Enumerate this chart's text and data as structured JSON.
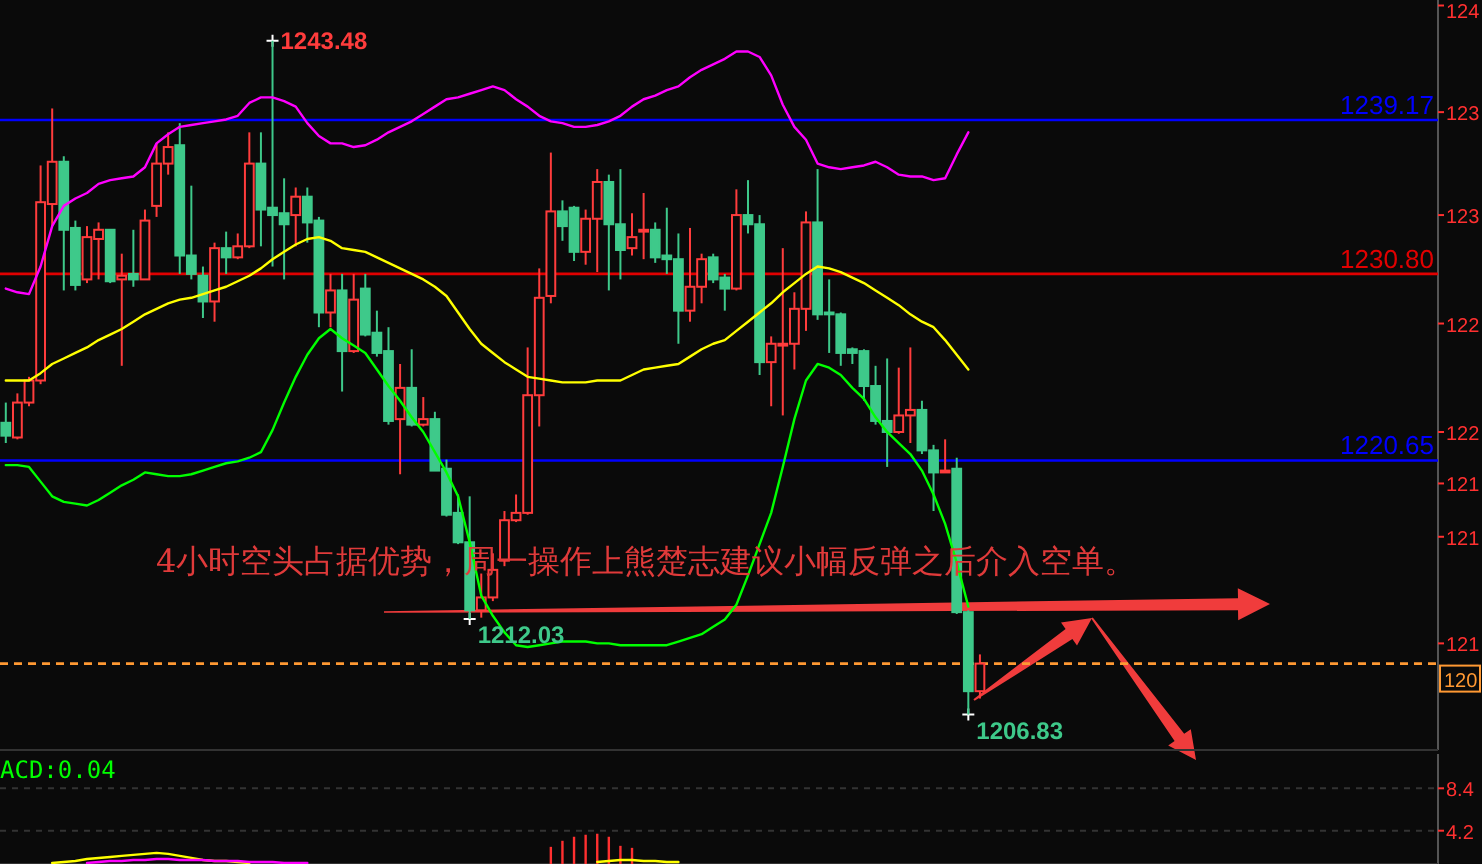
{
  "chart_data": [
    {
      "type": "candlestick",
      "categories": [
        null,
        null,
        null,
        null,
        null,
        null,
        null,
        null,
        null,
        null,
        null,
        null,
        null,
        null,
        null,
        null,
        null,
        null,
        null,
        null,
        null,
        null,
        null,
        null,
        null,
        null,
        null,
        null,
        null,
        null,
        null,
        null,
        null,
        null,
        null,
        null,
        null,
        null,
        null,
        null,
        null,
        null,
        null,
        null,
        null,
        null,
        null,
        null,
        null,
        null,
        null,
        null,
        null,
        null,
        null,
        null,
        null,
        null,
        null,
        null,
        null,
        null,
        null,
        null,
        null,
        null,
        null,
        null,
        null,
        null,
        null,
        null,
        null,
        null,
        null,
        null,
        null,
        null,
        null,
        null,
        null,
        null,
        null,
        null,
        null,
        null,
        null,
        null,
        null,
        null,
        null,
        null,
        null,
        null,
        null,
        null,
        null,
        null,
        null,
        null,
        null,
        null,
        null,
        null,
        null,
        null,
        null,
        null,
        null,
        null,
        null,
        null,
        null,
        null,
        null,
        null,
        null,
        null,
        null,
        null,
        null,
        null,
        null,
        null
      ],
      "ohlc": [
        [
          1222.7,
          1223.8,
          1221.6,
          1222.0
        ],
        [
          1221.9,
          1224.3,
          1221.8,
          1223.8
        ],
        [
          1223.8,
          1225.2,
          1223.6,
          1225.0
        ],
        [
          1225.0,
          1236.7,
          1224.8,
          1234.7
        ],
        [
          1234.6,
          1239.8,
          1233.4,
          1236.9
        ],
        [
          1236.9,
          1237.2,
          1229.9,
          1233.2
        ],
        [
          1233.3,
          1233.7,
          1229.9,
          1230.2
        ],
        [
          1230.5,
          1233.4,
          1230.3,
          1232.8
        ],
        [
          1232.7,
          1233.6,
          1230.5,
          1233.2
        ],
        [
          1233.2,
          1233.2,
          1230.3,
          1230.4
        ],
        [
          1230.5,
          1231.9,
          1225.8,
          1230.7
        ],
        [
          1230.8,
          1233.2,
          1230.1,
          1230.5
        ],
        [
          1230.5,
          1234.3,
          1230.5,
          1233.7
        ],
        [
          1234.5,
          1237.9,
          1233.9,
          1236.8
        ],
        [
          1236.8,
          1238.5,
          1236.2,
          1237.7
        ],
        [
          1237.8,
          1239.0,
          1230.8,
          1231.8
        ],
        [
          1231.8,
          1235.6,
          1230.5,
          1230.8
        ],
        [
          1230.7,
          1231.2,
          1228.4,
          1229.3
        ],
        [
          1229.3,
          1232.5,
          1228.2,
          1232.2
        ],
        [
          1232.2,
          1233.1,
          1230.8,
          1231.7
        ],
        [
          1231.7,
          1233.0,
          1231.6,
          1232.3
        ],
        [
          1232.3,
          1238.5,
          1232.2,
          1236.8
        ],
        [
          1236.8,
          1238.5,
          1232.3,
          1234.3
        ],
        [
          1234.4,
          1243.48,
          1231.2,
          1234.0
        ],
        [
          1234.1,
          1236.0,
          1230.5,
          1233.5
        ],
        [
          1234.0,
          1235.5,
          1232.3,
          1235.0
        ],
        [
          1235.0,
          1235.5,
          1232.5,
          1233.6
        ],
        [
          1233.7,
          1233.9,
          1227.9,
          1228.7
        ],
        [
          1228.7,
          1230.8,
          1227.9,
          1229.9
        ],
        [
          1229.9,
          1230.8,
          1224.4,
          1226.6
        ],
        [
          1226.6,
          1230.8,
          1226.5,
          1229.4
        ],
        [
          1230.0,
          1230.8,
          1227.4,
          1227.5
        ],
        [
          1227.6,
          1228.8,
          1226.3,
          1226.5
        ],
        [
          1226.6,
          1227.9,
          1222.6,
          1222.8
        ],
        [
          1222.9,
          1225.9,
          1219.9,
          1224.6
        ],
        [
          1224.6,
          1226.7,
          1222.5,
          1222.6
        ],
        [
          1222.6,
          1224.1,
          1222.5,
          1222.9
        ],
        [
          1222.9,
          1223.3,
          1220.1,
          1220.1
        ],
        [
          1220.2,
          1220.7,
          1217.6,
          1217.7
        ],
        [
          1217.8,
          1218.8,
          1216.1,
          1216.2
        ],
        [
          1216.2,
          1218.7,
          1212.03,
          1212.5
        ],
        [
          1212.5,
          1214.5,
          1212.1,
          1213.2
        ],
        [
          1213.2,
          1215.6,
          1213.0,
          1214.7
        ],
        [
          1215.2,
          1217.9,
          1214.9,
          1217.4
        ],
        [
          1217.4,
          1218.8,
          1217.3,
          1217.8
        ],
        [
          1217.8,
          1226.8,
          1217.7,
          1224.2
        ],
        [
          1224.2,
          1231.1,
          1222.5,
          1229.5
        ],
        [
          1229.6,
          1237.4,
          1229.2,
          1234.2
        ],
        [
          1234.2,
          1234.8,
          1232.6,
          1233.4
        ],
        [
          1234.4,
          1234.5,
          1231.5,
          1232.0
        ],
        [
          1232.0,
          1234.3,
          1231.3,
          1233.8
        ],
        [
          1233.8,
          1236.5,
          1230.9,
          1235.8
        ],
        [
          1235.8,
          1236.2,
          1229.9,
          1233.5
        ],
        [
          1233.5,
          1236.5,
          1230.5,
          1232.1
        ],
        [
          1232.2,
          1234.1,
          1231.8,
          1232.8
        ],
        [
          1233.1,
          1235.2,
          1231.6,
          1233.2
        ],
        [
          1233.2,
          1233.6,
          1231.4,
          1231.7
        ],
        [
          1231.8,
          1234.4,
          1230.8,
          1231.6
        ],
        [
          1231.6,
          1233.0,
          1227.0,
          1228.8
        ],
        [
          1228.8,
          1233.3,
          1228.2,
          1230.1
        ],
        [
          1230.1,
          1231.9,
          1229.2,
          1231.6
        ],
        [
          1231.7,
          1231.9,
          1230.3,
          1230.5
        ],
        [
          1230.6,
          1230.8,
          1228.8,
          1230.0
        ],
        [
          1230.0,
          1235.4,
          1229.9,
          1234.0
        ],
        [
          1234.0,
          1235.9,
          1233.0,
          1233.5
        ],
        [
          1233.5,
          1234.0,
          1225.3,
          1226.0
        ],
        [
          1226.0,
          1227.4,
          1223.6,
          1227.0
        ],
        [
          1226.9,
          1232.2,
          1223.1,
          1227.0
        ],
        [
          1227.0,
          1229.8,
          1225.6,
          1228.9
        ],
        [
          1228.9,
          1234.2,
          1227.7,
          1233.6
        ],
        [
          1233.6,
          1236.5,
          1228.3,
          1228.6
        ],
        [
          1228.7,
          1230.5,
          1226.5,
          1228.6
        ],
        [
          1228.6,
          1228.7,
          1225.8,
          1226.5
        ],
        [
          1226.7,
          1226.8,
          1225.9,
          1226.5
        ],
        [
          1226.6,
          1226.7,
          1223.9,
          1224.7
        ],
        [
          1224.7,
          1225.8,
          1222.6,
          1222.8
        ],
        [
          1222.8,
          1226.2,
          1220.3,
          1222.2
        ],
        [
          1222.2,
          1225.7,
          1222.1,
          1223.1
        ],
        [
          1223.1,
          1226.8,
          1221.6,
          1223.4
        ],
        [
          1223.4,
          1223.9,
          1221.0,
          1221.2
        ],
        [
          1221.2,
          1221.5,
          1217.9,
          1220.0
        ],
        [
          1220.0,
          1221.8,
          1220.0,
          1220.1
        ],
        [
          1220.2,
          1220.8,
          1212.3,
          1212.4
        ],
        [
          1212.4,
          1212.5,
          1206.83,
          1208.1
        ],
        [
          1208.1,
          1210.1,
          1207.7,
          1209.6
        ],
        null,
        null,
        null,
        null,
        null,
        null,
        null,
        null,
        null,
        null,
        null,
        null,
        null,
        null,
        null,
        null,
        null,
        null,
        null,
        null,
        null,
        null,
        null,
        null,
        null,
        null,
        null,
        null,
        null,
        null,
        null,
        null,
        null,
        null,
        null,
        null,
        null,
        null,
        null
      ],
      "series": [
        {
          "type": "line",
          "color": "#ff00ff",
          "values": [
            1230.0,
            1229.8,
            1229.7,
            1231.2,
            1233.4,
            1234.5,
            1234.9,
            1235.2,
            1235.7,
            1235.9,
            1236.0,
            1236.1,
            1236.6,
            1237.9,
            1238.4,
            1238.8,
            1238.9,
            1239.0,
            1239.1,
            1239.2,
            1239.4,
            1240.1,
            1240.4,
            1240.4,
            1240.2,
            1239.9,
            1239.0,
            1238.3,
            1237.9,
            1237.9,
            1237.7,
            1237.8,
            1238.1,
            1238.5,
            1238.8,
            1239.1,
            1239.5,
            1239.9,
            1240.3,
            1240.4,
            1240.6,
            1240.8,
            1241.0,
            1240.8,
            1240.3,
            1239.9,
            1239.4,
            1239.1,
            1239.0,
            1238.8,
            1238.8,
            1238.9,
            1239.1,
            1239.4,
            1239.9,
            1240.3,
            1240.5,
            1240.8,
            1241.0,
            1241.5,
            1241.9,
            1242.2,
            1242.5,
            1242.9,
            1242.9,
            1242.6,
            1241.6,
            1240.0,
            1238.8,
            1238.1,
            1236.8,
            1236.6,
            1236.5,
            1236.6,
            1236.7,
            1236.9,
            1236.6,
            1236.2,
            1236.1,
            1236.1,
            1235.9,
            1236.0,
            1237.3,
            1238.5,
            null,
            null,
            null,
            null,
            null,
            null,
            null,
            null,
            null,
            null,
            null,
            null,
            null,
            null,
            null,
            null,
            null,
            null,
            null,
            null,
            null,
            null,
            null,
            null,
            null,
            null,
            null,
            null,
            null,
            null,
            null,
            null,
            null,
            null,
            null,
            null,
            null,
            null,
            null,
            null
          ]
        },
        {
          "type": "line",
          "color": "#ffff00",
          "values": [
            1225.0,
            1225.0,
            1225.0,
            1225.4,
            1225.9,
            1226.2,
            1226.5,
            1226.8,
            1227.2,
            1227.5,
            1227.8,
            1228.2,
            1228.6,
            1228.9,
            1229.2,
            1229.4,
            1229.5,
            1229.7,
            1229.9,
            1230.1,
            1230.4,
            1230.7,
            1231.1,
            1231.6,
            1232.0,
            1232.4,
            1232.7,
            1232.8,
            1232.6,
            1232.2,
            1232.1,
            1232.0,
            1231.7,
            1231.4,
            1231.1,
            1230.8,
            1230.5,
            1230.1,
            1229.6,
            1228.7,
            1227.8,
            1227.0,
            1226.5,
            1226.0,
            1225.6,
            1225.2,
            1225.1,
            1225.0,
            1224.9,
            1224.9,
            1224.9,
            1225.0,
            1225.0,
            1225.0,
            1225.3,
            1225.6,
            1225.7,
            1225.8,
            1225.9,
            1226.3,
            1226.7,
            1227.0,
            1227.2,
            1227.7,
            1228.2,
            1228.7,
            1229.2,
            1229.8,
            1230.3,
            1230.8,
            1231.2,
            1231.1,
            1230.9,
            1230.6,
            1230.3,
            1229.9,
            1229.5,
            1229.1,
            1228.6,
            1228.2,
            1227.9,
            1227.2,
            1226.4,
            1225.6,
            null,
            null,
            null,
            null,
            null,
            null,
            null,
            null,
            null,
            null,
            null,
            null,
            null,
            null,
            null,
            null,
            null,
            null,
            null,
            null,
            null,
            null,
            null,
            null,
            null,
            null,
            null,
            null,
            null,
            null,
            null,
            null,
            null,
            null,
            null,
            null,
            null,
            null,
            null,
            null
          ]
        },
        {
          "type": "line",
          "color": "#00ff00",
          "values": [
            1220.4,
            1220.4,
            1220.3,
            1219.5,
            1218.7,
            1218.4,
            1218.3,
            1218.2,
            1218.5,
            1218.9,
            1219.3,
            1219.6,
            1220.0,
            1219.9,
            1219.8,
            1219.8,
            1219.9,
            1220.1,
            1220.3,
            1220.5,
            1220.6,
            1220.8,
            1221.1,
            1222.3,
            1223.8,
            1225.2,
            1226.4,
            1227.3,
            1227.8,
            1227.3,
            1226.9,
            1226.5,
            1225.6,
            1224.7,
            1223.9,
            1223.0,
            1222.2,
            1221.1,
            1220.0,
            1218.7,
            1216.2,
            1213.3,
            1212.2,
            1211.3,
            1210.6,
            1210.5,
            1210.6,
            1210.7,
            1210.8,
            1210.8,
            1210.8,
            1210.7,
            1210.7,
            1210.6,
            1210.6,
            1210.6,
            1210.6,
            1210.6,
            1210.8,
            1211.0,
            1211.2,
            1211.6,
            1212.0,
            1212.8,
            1214.4,
            1216.1,
            1217.8,
            1220.3,
            1222.9,
            1225.0,
            1225.9,
            1225.7,
            1225.3,
            1224.6,
            1224.0,
            1223.0,
            1222.2,
            1221.6,
            1221.0,
            1220.1,
            1218.8,
            1217.2,
            1215.1,
            1212.7,
            null,
            null,
            null,
            null,
            null,
            null,
            null,
            null,
            null,
            null,
            null,
            null,
            null,
            null,
            null,
            null,
            null,
            null,
            null,
            null,
            null,
            null,
            null,
            null,
            null,
            null,
            null,
            null,
            null,
            null,
            null,
            null,
            null,
            null,
            null,
            null,
            null,
            null,
            null,
            null
          ]
        }
      ],
      "ylim": [
        1204.9,
        1245.7
      ],
      "yticks": [
        {
          "value": 1245.4,
          "label": null
        },
        {
          "value": 1239.6,
          "label": null
        },
        {
          "value": 1234.0,
          "label": null
        },
        {
          "value": 1228.1,
          "label": null
        },
        {
          "value": 1222.2,
          "label": null
        },
        {
          "value": 1219.4,
          "label": null
        },
        {
          "value": 1216.5,
          "label": null
        },
        {
          "value": 1210.7,
          "label": null
        }
      ],
      "ref_lines": [
        {
          "axis": "y",
          "value": 1239.17,
          "label": "1239.17",
          "color": "#0000ff",
          "line_style": "solid"
        },
        {
          "axis": "y",
          "value": 1230.8,
          "label": "1230.80",
          "color": "#e00000",
          "line_style": "solid"
        },
        {
          "axis": "y",
          "value": 1220.65,
          "label": "1220.65",
          "color": "#0000ff",
          "line_style": "solid"
        },
        {
          "axis": "y",
          "value": 1209.6,
          "color": "#ff9933",
          "line_style": "dashed"
        }
      ],
      "annotations": [
        "1243.48",
        "1212.03",
        "1206.83",
        "4小时空头占据优势，周一操作上熊楚志建议小幅反弹之后介入空单。",
        "124",
        "123",
        "123",
        "122",
        "122",
        "121",
        "121",
        "121",
        "120"
      ]
    },
    {
      "type": "bar",
      "categories": [
        null,
        null,
        null,
        null,
        null,
        null,
        null,
        null,
        null,
        null,
        null,
        null,
        null,
        null,
        null,
        null,
        null,
        null,
        null,
        null,
        null,
        null,
        null,
        null,
        null,
        null,
        null,
        null,
        null,
        null,
        null,
        null,
        null,
        null,
        null,
        null,
        null,
        null,
        null,
        null,
        null,
        null,
        null,
        null,
        null,
        null,
        null,
        null,
        null,
        null,
        null,
        null,
        null,
        null,
        null,
        null,
        null,
        null,
        null,
        null,
        null,
        null,
        null,
        null,
        null,
        null,
        null,
        null,
        null,
        null,
        null,
        null,
        null,
        null,
        null,
        null,
        null,
        null,
        null,
        null,
        null,
        null,
        null,
        null,
        null,
        null,
        null,
        null,
        null,
        null,
        null,
        null,
        null,
        null,
        null,
        null,
        null,
        null,
        null,
        null,
        null,
        null,
        null,
        null,
        null,
        null,
        null,
        null,
        null,
        null,
        null,
        null,
        null,
        null,
        null,
        null,
        null,
        null,
        null,
        null,
        null,
        null,
        null,
        null
      ],
      "series": [
        {
          "type": "bar",
          "color": "#ff3030",
          "values": [
            null,
            null,
            null,
            null,
            null,
            null,
            null,
            null,
            null,
            null,
            null,
            null,
            null,
            null,
            null,
            null,
            null,
            null,
            null,
            null,
            null,
            null,
            null,
            null,
            null,
            null,
            null,
            null,
            null,
            null,
            null,
            null,
            null,
            null,
            null,
            null,
            null,
            null,
            null,
            null,
            null,
            null,
            null,
            null,
            null,
            null,
            null,
            2.6,
            3.2,
            3.6,
            3.8,
            3.9,
            3.6,
            2.7,
            2.5,
            null,
            null,
            null,
            null,
            null,
            null,
            null,
            null,
            null,
            null,
            null,
            null,
            null,
            null,
            null,
            null,
            null,
            null,
            null,
            null,
            null,
            null,
            null,
            null,
            null,
            null,
            null,
            null,
            null,
            null,
            null,
            null,
            null,
            null,
            null,
            null,
            null,
            null,
            null,
            null,
            null,
            null,
            null,
            null,
            null,
            null,
            null,
            null,
            null,
            null,
            null,
            null,
            null,
            null,
            null,
            null,
            null,
            null,
            null,
            null,
            null,
            null,
            null,
            null,
            null,
            null,
            null,
            null,
            null
          ]
        },
        {
          "type": "line",
          "color": "#ffff00",
          "values": [
            null,
            null,
            null,
            null,
            1.0,
            1.1,
            1.2,
            1.4,
            1.5,
            1.6,
            1.7,
            1.8,
            1.9,
            2.0,
            1.9,
            1.7,
            1.5,
            1.3,
            1.2,
            1.2,
            1.1,
            1.0,
            null,
            null,
            null,
            null,
            null,
            null,
            null,
            null,
            null,
            null,
            null,
            null,
            null,
            null,
            null,
            null,
            null,
            null,
            null,
            null,
            null,
            null,
            null,
            null,
            null,
            null,
            null,
            null,
            null,
            1.1,
            1.2,
            1.3,
            1.3,
            1.2,
            1.2,
            1.1,
            1.1,
            null,
            null,
            null,
            null,
            null,
            null,
            null,
            null,
            null,
            null,
            null,
            null,
            null,
            null,
            null,
            null,
            null,
            null,
            null,
            null,
            null,
            null,
            null,
            null,
            null,
            null,
            null,
            null,
            null,
            null,
            null,
            null,
            null,
            null,
            null,
            null,
            null,
            null,
            null,
            null,
            null,
            null,
            null,
            null,
            null,
            null,
            null,
            null,
            null,
            null,
            null,
            null,
            null,
            null,
            null,
            null,
            null,
            null,
            null,
            null,
            null,
            null,
            null,
            null,
            null
          ]
        },
        {
          "type": "line",
          "color": "#ff00ff",
          "values": [
            null,
            null,
            null,
            null,
            null,
            null,
            null,
            1.0,
            1.1,
            1.2,
            1.2,
            1.3,
            1.3,
            1.4,
            1.4,
            1.3,
            1.3,
            1.3,
            1.2,
            1.2,
            1.2,
            1.1,
            1.1,
            1.1,
            1.0,
            1.0,
            1.0,
            null,
            null,
            null,
            null,
            null,
            null,
            null,
            null,
            null,
            null,
            null,
            null,
            null,
            null,
            null,
            null,
            null,
            null,
            null,
            null,
            null,
            null,
            null,
            null,
            null,
            null,
            null,
            null,
            null,
            null,
            null,
            null,
            null,
            null,
            null,
            null,
            null,
            null,
            null,
            null,
            null,
            null,
            null,
            null,
            null,
            null,
            null,
            null,
            null,
            null,
            null,
            null,
            null,
            null,
            null,
            null,
            null,
            null,
            null,
            null,
            null,
            null,
            null,
            null,
            null,
            null,
            null,
            null,
            null,
            null,
            null,
            null,
            null,
            null,
            null,
            null,
            null,
            null,
            null,
            null,
            null,
            null,
            null,
            null,
            null,
            null,
            null,
            null,
            null,
            null,
            null,
            null,
            null,
            null,
            null,
            null,
            null
          ]
        }
      ],
      "ylim": [
        0.9,
        11.8
      ],
      "yticks": [
        4.2,
        8.4
      ],
      "grid": "y",
      "annotations": [
        "ACD:0.04"
      ]
    }
  ]
}
